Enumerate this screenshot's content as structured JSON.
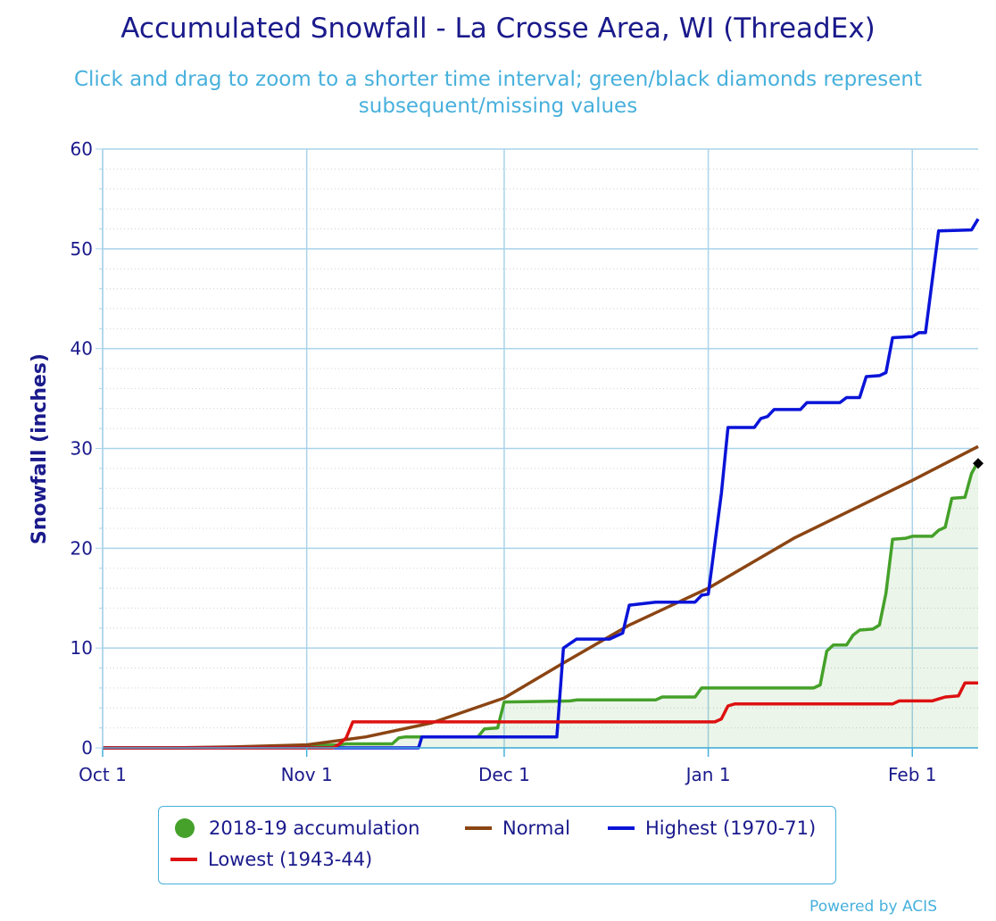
{
  "chart_data": {
    "type": "line",
    "title": "Accumulated Snowfall - La Crosse Area, WI (ThreadEx)",
    "subtitle": "Click and drag to zoom to a shorter time interval; green/black diamonds represent subsequent/missing values",
    "ylabel": "Snowfall (inches)",
    "xlabel": "",
    "ylim": [
      0,
      60
    ],
    "yticks": [
      "0",
      "10",
      "20",
      "30",
      "40",
      "50",
      "60"
    ],
    "xlim_days": [
      0,
      133
    ],
    "xticks": [
      {
        "label": "Oct 1",
        "day": 0
      },
      {
        "label": "Nov 1",
        "day": 31
      },
      {
        "label": "Dec 1",
        "day": 61
      },
      {
        "label": "Jan 1",
        "day": 92
      },
      {
        "label": "Feb 1",
        "day": 123
      }
    ],
    "grid": true,
    "legend_position": "bottom-center",
    "series": [
      {
        "name": "2018-19 accumulation",
        "color": "#45a12a",
        "style": "area",
        "points": [
          [
            0,
            0
          ],
          [
            14,
            0
          ],
          [
            31,
            0.2
          ],
          [
            36,
            0.3
          ],
          [
            37,
            0.4
          ],
          [
            44,
            0.4
          ],
          [
            45,
            1.0
          ],
          [
            46,
            1.1
          ],
          [
            57,
            1.1
          ],
          [
            58,
            1.9
          ],
          [
            60,
            2.0
          ],
          [
            61,
            4.6
          ],
          [
            71,
            4.7
          ],
          [
            72,
            4.8
          ],
          [
            84,
            4.8
          ],
          [
            85,
            5.1
          ],
          [
            90,
            5.1
          ],
          [
            91,
            6.0
          ],
          [
            103,
            6.0
          ],
          [
            108,
            6.0
          ],
          [
            109,
            6.3
          ],
          [
            110,
            9.7
          ],
          [
            111,
            10.3
          ],
          [
            113,
            10.3
          ],
          [
            114,
            11.3
          ],
          [
            115,
            11.8
          ],
          [
            117,
            11.9
          ],
          [
            118,
            12.3
          ],
          [
            119,
            15.5
          ],
          [
            120,
            20.9
          ],
          [
            122,
            21.0
          ],
          [
            123,
            21.2
          ],
          [
            126,
            21.2
          ],
          [
            127,
            21.8
          ],
          [
            128,
            22.1
          ],
          [
            129,
            25.0
          ],
          [
            131,
            25.1
          ],
          [
            132,
            27.5
          ],
          [
            133,
            28.7
          ]
        ]
      },
      {
        "name": "Normal",
        "color": "#8b4513",
        "style": "line",
        "points": [
          [
            0,
            0
          ],
          [
            10,
            0
          ],
          [
            20,
            0.1
          ],
          [
            31,
            0.3
          ],
          [
            40,
            1.1
          ],
          [
            50,
            2.5
          ],
          [
            61,
            5.0
          ],
          [
            70,
            8.5
          ],
          [
            80,
            12.3
          ],
          [
            92,
            16.0
          ],
          [
            105,
            21.0
          ],
          [
            123,
            26.8
          ],
          [
            133,
            30.2
          ]
        ]
      },
      {
        "name": "Highest (1970-71)",
        "color": "#0a14d8",
        "style": "line",
        "points": [
          [
            0,
            0
          ],
          [
            48,
            0
          ],
          [
            48.5,
            1.1
          ],
          [
            69,
            1.1
          ],
          [
            70,
            10.0
          ],
          [
            72,
            10.9
          ],
          [
            77,
            10.9
          ],
          [
            79,
            11.5
          ],
          [
            80,
            14.3
          ],
          [
            84,
            14.6
          ],
          [
            90,
            14.6
          ],
          [
            91,
            15.3
          ],
          [
            92,
            15.4
          ],
          [
            94,
            25.5
          ],
          [
            95,
            32.1
          ],
          [
            99,
            32.1
          ],
          [
            100,
            33.0
          ],
          [
            101,
            33.2
          ],
          [
            102,
            33.9
          ],
          [
            106,
            33.9
          ],
          [
            107,
            34.6
          ],
          [
            112,
            34.6
          ],
          [
            113,
            35.1
          ],
          [
            115,
            35.1
          ],
          [
            116,
            37.2
          ],
          [
            118,
            37.3
          ],
          [
            119,
            37.6
          ],
          [
            120,
            41.1
          ],
          [
            123,
            41.2
          ],
          [
            124,
            41.6
          ],
          [
            125,
            41.6
          ],
          [
            127,
            51.8
          ],
          [
            132,
            51.9
          ],
          [
            133,
            53.0
          ]
        ]
      },
      {
        "name": "Lowest (1943-44)",
        "color": "#dd1111",
        "style": "line",
        "points": [
          [
            0,
            0
          ],
          [
            35,
            0
          ],
          [
            36,
            0.4
          ],
          [
            37,
            1.0
          ],
          [
            38,
            2.6
          ],
          [
            93,
            2.6
          ],
          [
            94,
            2.9
          ],
          [
            95,
            4.2
          ],
          [
            96,
            4.4
          ],
          [
            120,
            4.4
          ],
          [
            121,
            4.7
          ],
          [
            126,
            4.7
          ],
          [
            127,
            4.9
          ],
          [
            128,
            5.1
          ],
          [
            130,
            5.2
          ],
          [
            131,
            6.5
          ],
          [
            133,
            6.5
          ]
        ]
      }
    ],
    "markers": [
      {
        "label": "missing value",
        "shape": "diamond",
        "color": "#000000",
        "x": 133,
        "y": 28.5
      }
    ]
  },
  "legend": {
    "items": [
      {
        "label": "2018-19 accumulation",
        "color": "#45a12a",
        "symbol": "dot"
      },
      {
        "label": "Normal",
        "color": "#8b4513",
        "symbol": "line"
      },
      {
        "label": "Highest (1970-71)",
        "color": "#0a14d8",
        "symbol": "line"
      },
      {
        "label": "Lowest (1943-44)",
        "color": "#dd1111",
        "symbol": "line"
      }
    ]
  },
  "credits": "Powered by ACIS"
}
